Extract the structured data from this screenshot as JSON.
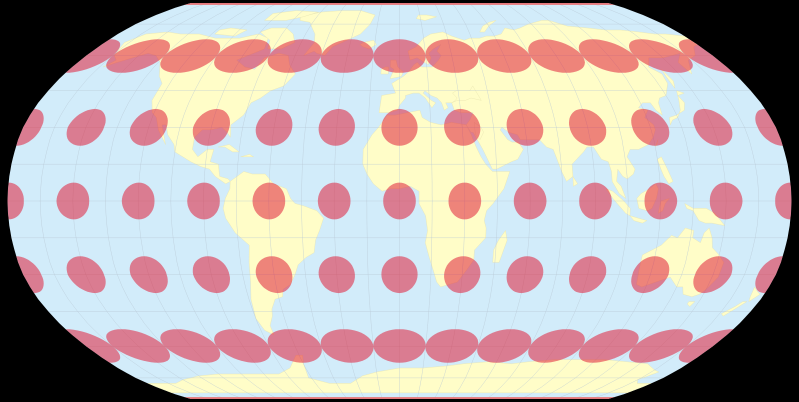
{
  "map": {
    "projection": "Robinson",
    "graticule_step_degrees": 15,
    "indicatrix_spacing_degrees": 30,
    "indicatrix_latitudes": [
      -60,
      -30,
      0,
      30,
      60
    ],
    "indicatrix_longitudes": [
      -180,
      -150,
      -120,
      -90,
      -60,
      -30,
      0,
      30,
      60,
      90,
      120,
      150,
      180
    ],
    "colors": {
      "background": "#000000",
      "ocean": "#d2ecfa",
      "land": "#fffdc8",
      "graticule": "#b8c8d4",
      "indicatrix": "#e0203a",
      "ice_band": "#e6787c"
    }
  }
}
